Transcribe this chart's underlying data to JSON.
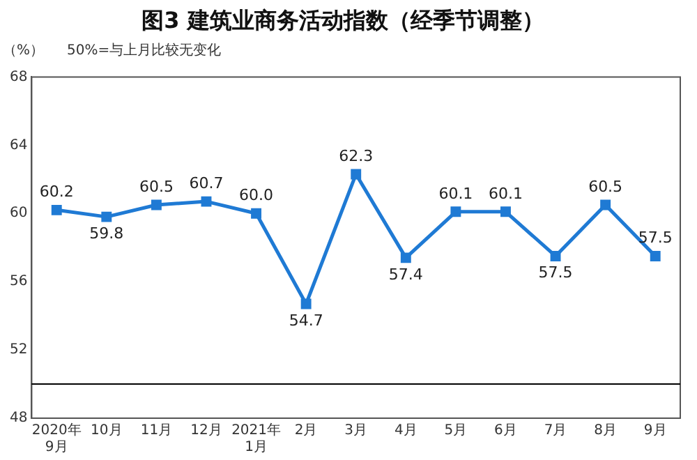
{
  "chart_data": {
    "type": "line",
    "title": "图3 建筑业商务活动指数（经季节调整）",
    "ylabel": "（%）",
    "annotations": [
      "50%=与上月比较无变化"
    ],
    "categories": [
      "2020年9月",
      "10月",
      "11月",
      "12月",
      "2021年1月",
      "2月",
      "3月",
      "4月",
      "5月",
      "6月",
      "7月",
      "8月",
      "9月"
    ],
    "series": [
      {
        "color": "#1f7ad4",
        "values": [
          60.2,
          59.8,
          60.5,
          60.7,
          60.0,
          54.7,
          62.3,
          57.4,
          60.1,
          60.1,
          57.5,
          60.5,
          57.5
        ],
        "value_labels": [
          "60.2",
          "59.8",
          "60.5",
          "60.7",
          "60.0",
          "54.7",
          "62.3",
          "57.4",
          "60.1",
          "60.1",
          "57.5",
          "60.5",
          "57.5"
        ]
      }
    ],
    "ylim": [
      48,
      68
    ],
    "yticks": [
      48,
      52,
      56,
      60,
      64,
      68
    ],
    "grid": false,
    "legend": false,
    "marker": "square",
    "line_style": "solid",
    "ref_lines": [
      {
        "axis": "y",
        "value": 50,
        "color": "#000000"
      }
    ]
  }
}
